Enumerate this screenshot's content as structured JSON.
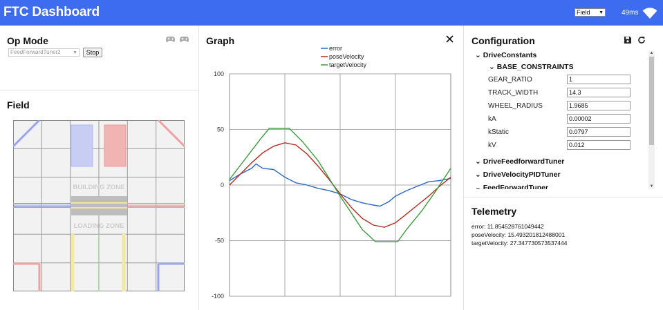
{
  "app": {
    "title": "FTC Dashboard",
    "layout_value": "Field",
    "latency": "49ms"
  },
  "opmode": {
    "title": "Op Mode",
    "selected": "FeedForwardTuner2",
    "stop_label": "Stop"
  },
  "field": {
    "title": "Field",
    "building_zone_label": "BUILDING ZONE",
    "loading_zone_label": "LOADING ZONE"
  },
  "graph": {
    "title": "Graph",
    "legend": [
      "error",
      "poseVelocity",
      "targetVelocity"
    ]
  },
  "chart_data": {
    "type": "line",
    "ylim": [
      -100,
      100
    ],
    "y_ticks": [
      "100",
      "50",
      "0",
      "-50",
      "-100"
    ],
    "series": [
      {
        "name": "error",
        "color": "#2a66c8",
        "points": [
          [
            0,
            4
          ],
          [
            0.05,
            10
          ],
          [
            0.1,
            15
          ],
          [
            0.12,
            19
          ],
          [
            0.15,
            15
          ],
          [
            0.2,
            14
          ],
          [
            0.25,
            7
          ],
          [
            0.3,
            2
          ],
          [
            0.35,
            0
          ],
          [
            0.4,
            -3
          ],
          [
            0.45,
            -5
          ],
          [
            0.5,
            -8
          ],
          [
            0.55,
            -13
          ],
          [
            0.6,
            -16
          ],
          [
            0.65,
            -18
          ],
          [
            0.68,
            -19
          ],
          [
            0.72,
            -15
          ],
          [
            0.75,
            -10
          ],
          [
            0.8,
            -5
          ],
          [
            0.85,
            -1
          ],
          [
            0.9,
            3
          ],
          [
            0.95,
            4
          ],
          [
            1,
            6
          ]
        ]
      },
      {
        "name": "poseVelocity",
        "color": "#b42a1c",
        "points": [
          [
            0,
            0
          ],
          [
            0.05,
            10
          ],
          [
            0.1,
            20
          ],
          [
            0.15,
            29
          ],
          [
            0.2,
            35
          ],
          [
            0.25,
            38
          ],
          [
            0.3,
            36
          ],
          [
            0.35,
            28
          ],
          [
            0.4,
            17
          ],
          [
            0.45,
            5
          ],
          [
            0.5,
            -8
          ],
          [
            0.55,
            -20
          ],
          [
            0.6,
            -30
          ],
          [
            0.65,
            -36
          ],
          [
            0.7,
            -38
          ],
          [
            0.75,
            -34
          ],
          [
            0.8,
            -26
          ],
          [
            0.85,
            -18
          ],
          [
            0.9,
            -10
          ],
          [
            0.95,
            -1
          ],
          [
            1,
            7
          ]
        ]
      },
      {
        "name": "targetVelocity",
        "color": "#3a9a3a",
        "points": [
          [
            0,
            5
          ],
          [
            0.05,
            18
          ],
          [
            0.1,
            31
          ],
          [
            0.15,
            44
          ],
          [
            0.18,
            51
          ],
          [
            0.27,
            51
          ],
          [
            0.33,
            39
          ],
          [
            0.4,
            22
          ],
          [
            0.45,
            6
          ],
          [
            0.5,
            -10
          ],
          [
            0.55,
            -25
          ],
          [
            0.6,
            -40
          ],
          [
            0.66,
            -51
          ],
          [
            0.76,
            -51
          ],
          [
            0.8,
            -40
          ],
          [
            0.87,
            -23
          ],
          [
            0.93,
            -6
          ],
          [
            1,
            15
          ]
        ]
      }
    ]
  },
  "config": {
    "title": "Configuration",
    "group_drive_constants": "DriveConstants",
    "group_base_constraints": "BASE_CONSTRAINTS",
    "fields": [
      {
        "label": "GEAR_RATIO",
        "value": "1"
      },
      {
        "label": "TRACK_WIDTH",
        "value": "14.3"
      },
      {
        "label": "WHEEL_RADIUS",
        "value": "1.9685"
      },
      {
        "label": "kA",
        "value": "0.00002"
      },
      {
        "label": "kStatic",
        "value": "0.0797"
      },
      {
        "label": "kV",
        "value": "0.012"
      }
    ],
    "group_feedforward": "DriveFeedforwardTuner",
    "group_velocity_pid": "DriveVelocityPIDTuner",
    "group_feedforward2": "FeedForwardTuner"
  },
  "telemetry": {
    "title": "Telemetry",
    "lines": [
      "error: 11.854528761049442",
      "poseVelocity: 15.493201812488001",
      "targetVelocity: 27.347730573537444"
    ]
  }
}
